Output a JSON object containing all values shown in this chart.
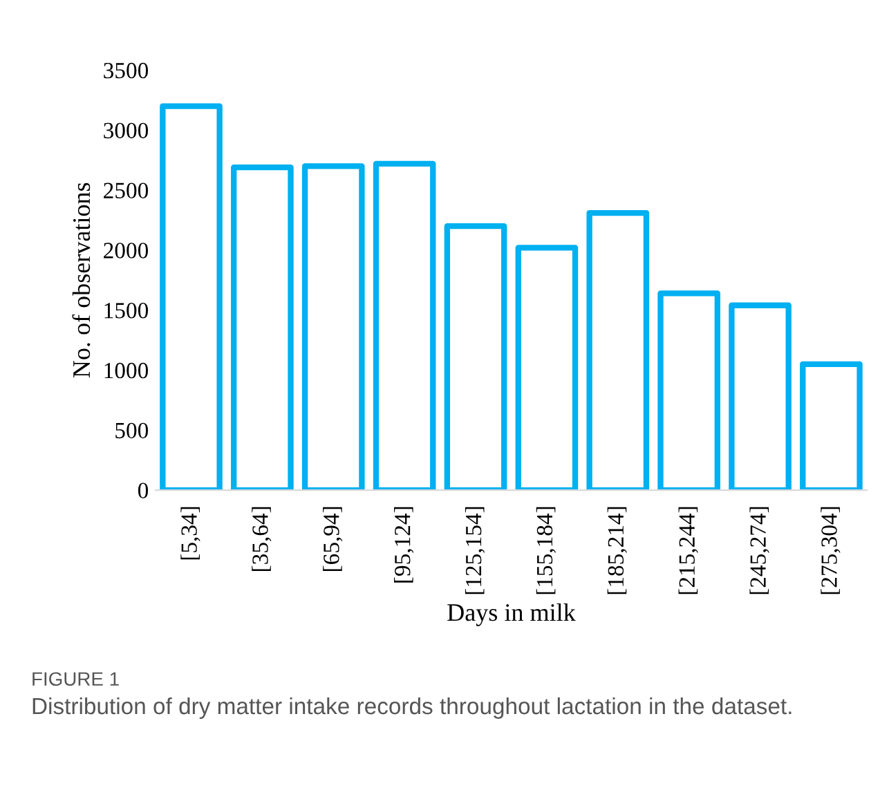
{
  "chart_data": {
    "type": "bar",
    "categories": [
      "[5,34]",
      "[35,64]",
      "[65,94]",
      "[95,124]",
      "[125,154]",
      "[155,184]",
      "[185,214]",
      "[215,244]",
      "[245,274]",
      "[275,304]"
    ],
    "values": [
      3200,
      2690,
      2700,
      2720,
      2200,
      2020,
      2310,
      1640,
      1540,
      1050
    ],
    "color": "#00b0f0",
    "xlabel": "Days in milk",
    "ylabel": "No. of observations",
    "ylim": [
      0,
      3500
    ],
    "yticks": [
      0,
      500,
      1000,
      1500,
      2000,
      2500,
      3000,
      3500
    ],
    "grid": false,
    "annotations": [
      "FIGURE 1",
      "Distribution of dry matter intake records throughout lactation in the dataset."
    ]
  }
}
